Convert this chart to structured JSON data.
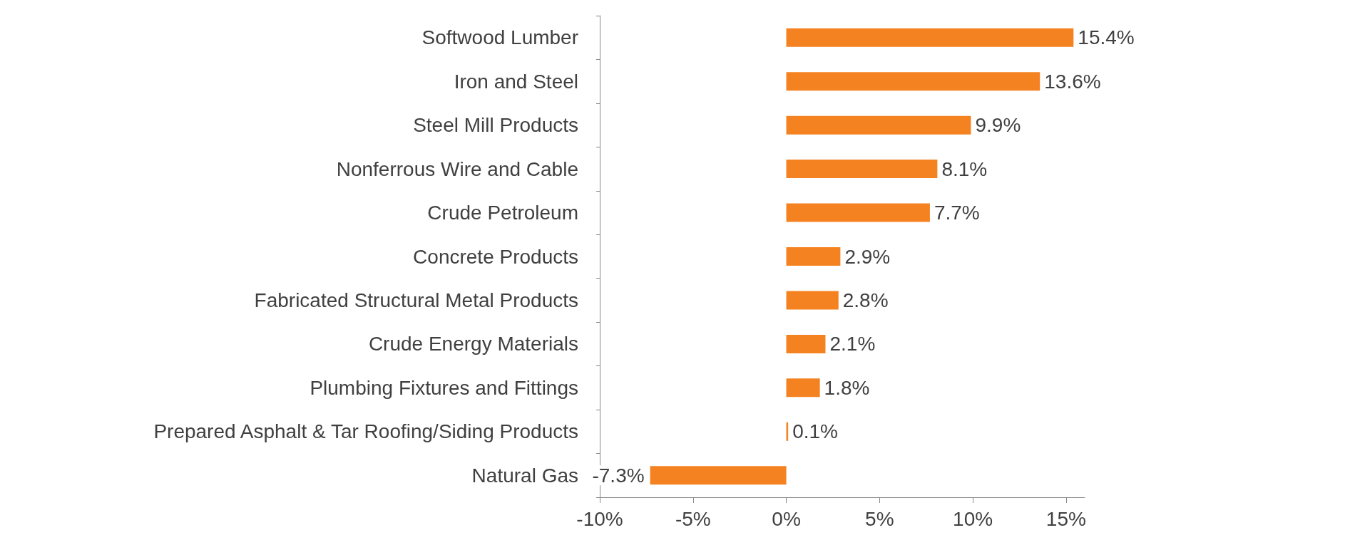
{
  "chart_data": {
    "type": "bar",
    "orientation": "horizontal",
    "categories": [
      "Softwood Lumber",
      "Iron and Steel",
      "Steel Mill Products",
      "Nonferrous Wire and Cable",
      "Crude Petroleum",
      "Concrete Products",
      "Fabricated Structural Metal Products",
      "Crude Energy Materials",
      "Plumbing Fixtures and Fittings",
      "Prepared Asphalt & Tar Roofing/Siding Products",
      "Natural Gas"
    ],
    "values": [
      15.4,
      13.6,
      9.9,
      8.1,
      7.7,
      2.9,
      2.8,
      2.1,
      1.8,
      0.1,
      -7.3
    ],
    "value_labels": [
      "15.4%",
      "13.6%",
      "9.9%",
      "8.1%",
      "7.7%",
      "2.9%",
      "2.8%",
      "2.1%",
      "1.8%",
      "0.1%",
      "-7.3%"
    ],
    "color": "#f58220",
    "xlim": [
      -10,
      16
    ],
    "xticks": [
      {
        "value": -10,
        "label": "-10%"
      },
      {
        "value": -5,
        "label": "-5%"
      },
      {
        "value": 0,
        "label": "0%"
      },
      {
        "value": 5,
        "label": "5%"
      },
      {
        "value": 10,
        "label": "10%"
      },
      {
        "value": 15,
        "label": "15%"
      }
    ],
    "grid": false
  }
}
